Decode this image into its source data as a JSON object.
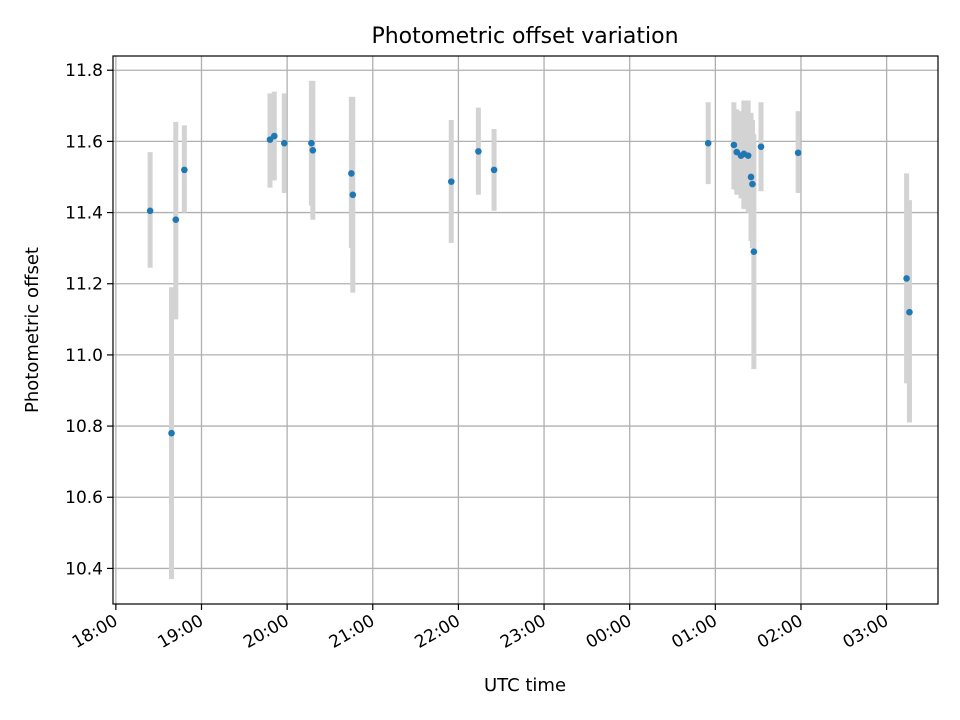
{
  "chart_data": {
    "type": "scatter",
    "title": "Photometric offset variation",
    "xlabel": "UTC time",
    "ylabel": "Photometric offset",
    "grid": true,
    "x_axis": {
      "kind": "time",
      "min": "17:58",
      "max": "03:36",
      "ticks": [
        "18:00",
        "19:00",
        "20:00",
        "21:00",
        "22:00",
        "23:00",
        "00:00",
        "01:00",
        "02:00",
        "03:00"
      ]
    },
    "y_axis": {
      "min": 10.3,
      "max": 11.84,
      "ticks": [
        "10.4",
        "10.6",
        "10.8",
        "11.0",
        "11.2",
        "11.4",
        "11.6",
        "11.8"
      ]
    },
    "colors": {
      "point": "#1f77b4",
      "error_bar": "#d3d3d3",
      "grid": "#b0b0b0"
    },
    "series": [
      {
        "points": [
          {
            "t": "18:24",
            "y": 11.405,
            "lo": 11.245,
            "hi": 11.57
          },
          {
            "t": "18:39",
            "y": 10.78,
            "lo": 10.37,
            "hi": 11.19
          },
          {
            "t": "18:42",
            "y": 11.38,
            "lo": 11.1,
            "hi": 11.655
          },
          {
            "t": "18:48",
            "y": 11.52,
            "lo": 11.4,
            "hi": 11.645
          },
          {
            "t": "19:48",
            "y": 11.605,
            "lo": 11.47,
            "hi": 11.735
          },
          {
            "t": "19:51",
            "y": 11.615,
            "lo": 11.49,
            "hi": 11.74
          },
          {
            "t": "19:58",
            "y": 11.595,
            "lo": 11.455,
            "hi": 11.735
          },
          {
            "t": "20:17",
            "y": 11.595,
            "lo": 11.42,
            "hi": 11.77
          },
          {
            "t": "20:18",
            "y": 11.575,
            "lo": 11.38,
            "hi": 11.77
          },
          {
            "t": "20:45",
            "y": 11.51,
            "lo": 11.3,
            "hi": 11.725
          },
          {
            "t": "20:46",
            "y": 11.45,
            "lo": 11.175,
            "hi": 11.725
          },
          {
            "t": "21:55",
            "y": 11.487,
            "lo": 11.315,
            "hi": 11.66
          },
          {
            "t": "22:14",
            "y": 11.572,
            "lo": 11.45,
            "hi": 11.695
          },
          {
            "t": "22:25",
            "y": 11.52,
            "lo": 11.405,
            "hi": 11.635
          },
          {
            "t": "00:55",
            "y": 11.595,
            "lo": 11.48,
            "hi": 11.71
          },
          {
            "t": "01:13",
            "y": 11.59,
            "lo": 11.465,
            "hi": 11.71
          },
          {
            "t": "01:15",
            "y": 11.57,
            "lo": 11.45,
            "hi": 11.69
          },
          {
            "t": "01:18",
            "y": 11.56,
            "lo": 11.44,
            "hi": 11.685
          },
          {
            "t": "01:20",
            "y": 11.565,
            "lo": 11.41,
            "hi": 11.715
          },
          {
            "t": "01:23",
            "y": 11.56,
            "lo": 11.4,
            "hi": 11.715
          },
          {
            "t": "01:25",
            "y": 11.5,
            "lo": 11.32,
            "hi": 11.68
          },
          {
            "t": "01:26",
            "y": 11.48,
            "lo": 11.3,
            "hi": 11.66
          },
          {
            "t": "01:27",
            "y": 11.29,
            "lo": 10.96,
            "hi": 11.62
          },
          {
            "t": "01:32",
            "y": 11.585,
            "lo": 11.46,
            "hi": 11.71
          },
          {
            "t": "01:58",
            "y": 11.568,
            "lo": 11.455,
            "hi": 11.685
          },
          {
            "t": "03:14",
            "y": 11.215,
            "lo": 10.92,
            "hi": 11.51
          },
          {
            "t": "03:16",
            "y": 11.12,
            "lo": 10.81,
            "hi": 11.435
          }
        ]
      }
    ]
  }
}
